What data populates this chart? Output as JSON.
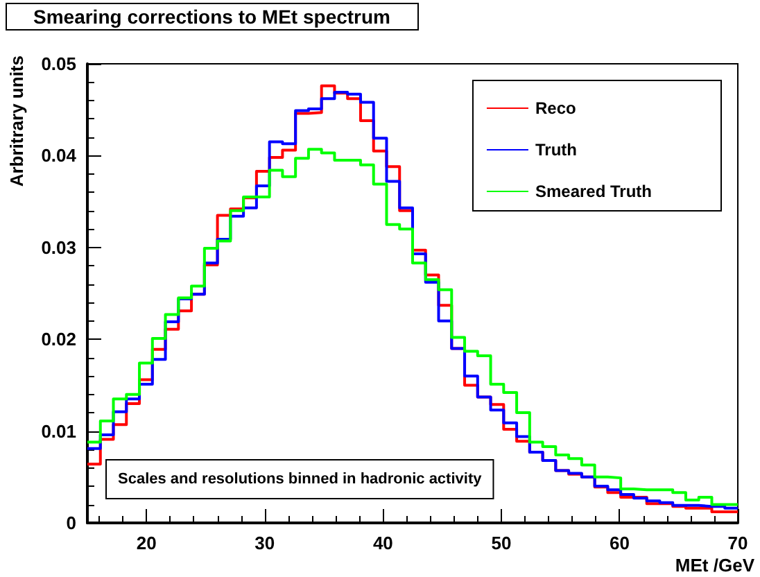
{
  "chart_data": {
    "type": "histogram",
    "title": "Smearing corrections to MEt spectrum",
    "xlabel": "MEt /GeV",
    "ylabel": "Arbritrary units",
    "annotations": [
      "Scales and resolutions binned in hadronic activity"
    ],
    "bins": [
      15,
      16.1,
      17.2,
      18.3,
      19.4,
      20.5,
      21.6,
      22.7,
      23.8,
      24.9,
      26,
      27.1,
      28.2,
      29.3,
      30.4,
      31.5,
      32.6,
      33.7,
      34.8,
      35.9,
      37,
      38.1,
      39.2,
      40.3,
      41.4,
      42.5,
      43.6,
      44.7,
      45.8,
      46.9,
      48,
      49.1,
      50.2,
      51.3,
      52.4,
      53.5,
      54.6,
      55.7,
      56.8,
      57.9,
      59,
      60.1,
      61.2,
      62.3,
      63.4,
      64.5,
      65.6,
      66.7,
      67.8,
      68.9,
      70
    ],
    "series": [
      {
        "name": "Reco",
        "color": "#ff0000",
        "values": [
          0.0064,
          0.0091,
          0.0107,
          0.013,
          0.0156,
          0.0189,
          0.0211,
          0.0231,
          0.0249,
          0.0281,
          0.0335,
          0.0342,
          0.0354,
          0.0383,
          0.0398,
          0.0406,
          0.0446,
          0.0447,
          0.0476,
          0.0468,
          0.0462,
          0.0438,
          0.0405,
          0.0388,
          0.034,
          0.0297,
          0.027,
          0.0237,
          0.019,
          0.015,
          0.0137,
          0.0129,
          0.0102,
          0.0089,
          0.0077,
          0.0068,
          0.0057,
          0.0053,
          0.005,
          0.0039,
          0.0033,
          0.0028,
          0.0028,
          0.0021,
          0.0021,
          0.0018,
          0.0016,
          0.0016,
          0.0012,
          0.0012
        ]
      },
      {
        "name": "Truth",
        "color": "#0000ff",
        "values": [
          0.0081,
          0.0096,
          0.0121,
          0.0135,
          0.0151,
          0.0178,
          0.0219,
          0.0244,
          0.0249,
          0.0283,
          0.0309,
          0.0334,
          0.0343,
          0.0367,
          0.0415,
          0.0413,
          0.0449,
          0.0451,
          0.0462,
          0.0469,
          0.0467,
          0.0458,
          0.0419,
          0.0372,
          0.0343,
          0.0293,
          0.0262,
          0.022,
          0.019,
          0.016,
          0.0137,
          0.0123,
          0.0109,
          0.0094,
          0.0077,
          0.0068,
          0.0057,
          0.0054,
          0.005,
          0.004,
          0.0036,
          0.0031,
          0.0027,
          0.0024,
          0.0022,
          0.0019,
          0.0019,
          0.0018,
          0.0018,
          0.0016
        ]
      },
      {
        "name": "Smeared Truth",
        "color": "#00ff00",
        "values": [
          0.0088,
          0.0111,
          0.0135,
          0.014,
          0.0174,
          0.0201,
          0.0227,
          0.0245,
          0.0258,
          0.0299,
          0.0307,
          0.034,
          0.0355,
          0.0355,
          0.0384,
          0.0377,
          0.0397,
          0.0407,
          0.0403,
          0.0395,
          0.0395,
          0.039,
          0.0369,
          0.0325,
          0.032,
          0.0283,
          0.0265,
          0.0254,
          0.0202,
          0.0187,
          0.0182,
          0.0151,
          0.0142,
          0.012,
          0.0088,
          0.0083,
          0.0074,
          0.007,
          0.0063,
          0.005,
          0.0049,
          0.0037,
          0.0036,
          0.0036,
          0.0036,
          0.0033,
          0.0025,
          0.0028,
          0.002,
          0.002
        ]
      }
    ],
    "xlim": [
      15,
      70
    ],
    "xticks": [
      20,
      30,
      40,
      50,
      60,
      70
    ],
    "ylim": [
      0,
      0.05
    ],
    "yticks": [
      0,
      0.01,
      0.02,
      0.03,
      0.04,
      0.05
    ],
    "grid": false,
    "legend": "top right"
  }
}
